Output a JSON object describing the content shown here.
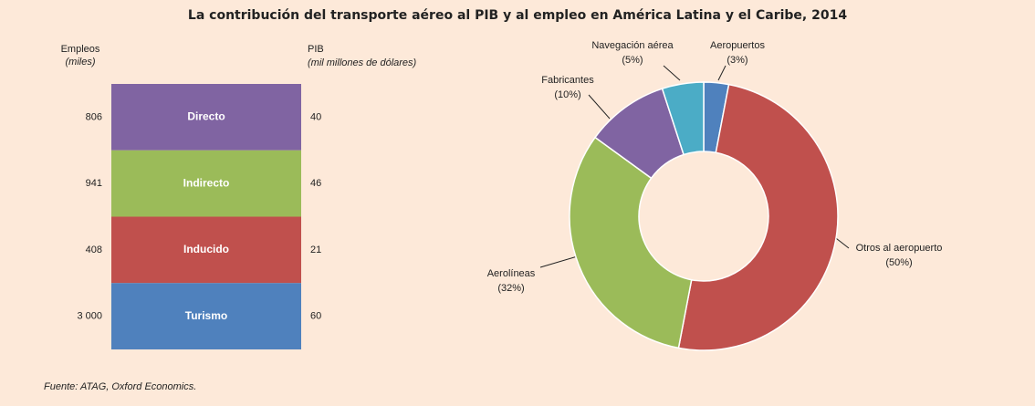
{
  "chart_data": [
    {
      "type": "block",
      "title": "La contribución del transporte aéreo al PIB y al empleo en América Latina y el Caribe, 2014",
      "left_label": "Empleos",
      "left_unit": "(miles)",
      "right_label": "PIB",
      "right_unit": "(mil millones de dólares)",
      "categories": [
        "Directo",
        "Indirecto",
        "Inducido",
        "Turismo"
      ],
      "colors": [
        "#8064a2",
        "#9bbb59",
        "#c0504d",
        "#4f81bd"
      ],
      "series": [
        {
          "name": "Empleos",
          "values": [
            806,
            941,
            408,
            3000
          ],
          "value_labels": [
            "806",
            "941",
            "408",
            "3 000"
          ]
        },
        {
          "name": "PIB",
          "values": [
            40,
            46,
            21,
            60
          ]
        }
      ],
      "source": "Fuente: ATAG, Oxford Economics."
    },
    {
      "type": "donut",
      "categories": [
        "Aeropuertos",
        "Otros al aeropuerto",
        "Aerolíneas",
        "Fabricantes",
        "Navegación aérea"
      ],
      "values": [
        3,
        50,
        32,
        10,
        5
      ],
      "value_labels": [
        "(3%)",
        "(50%)",
        "(32%)",
        "(10%)",
        "(5%)"
      ],
      "colors": [
        "#4f81bd",
        "#c0504d",
        "#9bbb59",
        "#8064a2",
        "#4bacc6"
      ]
    }
  ]
}
